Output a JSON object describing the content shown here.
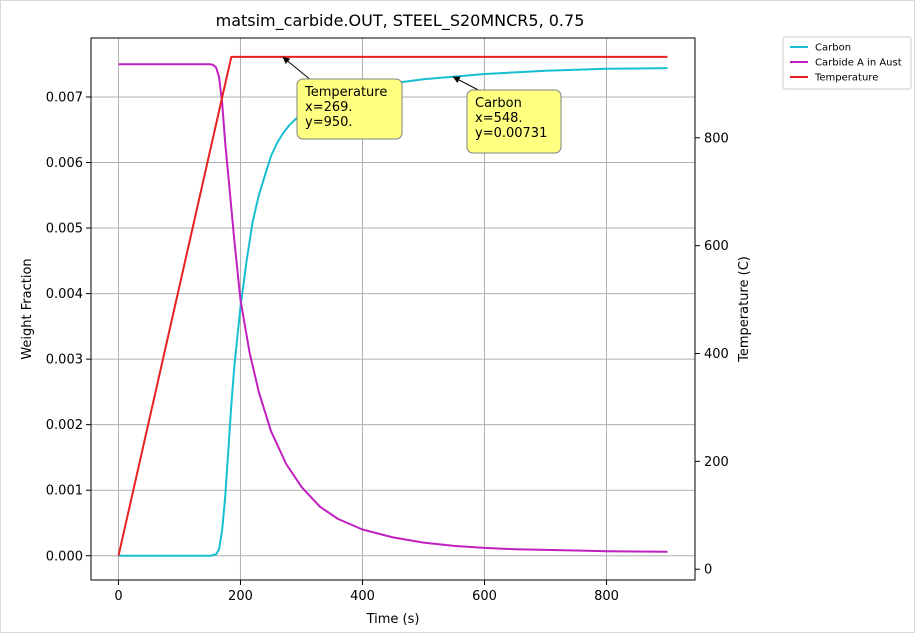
{
  "chart_data": {
    "type": "line",
    "title": "matsim_carbide.OUT, STEEL_S20MNCR5, 0.75",
    "xlabel": "Time (s)",
    "ylabel": "Weight Fraction",
    "y2label": "Temperature (C)",
    "xlim": [
      -45,
      945
    ],
    "ylim": [
      -0.00037,
      0.0079
    ],
    "y2lim": [
      -20,
      985
    ],
    "xticks": [
      0,
      200,
      400,
      600,
      800
    ],
    "xtick_labels": [
      "0",
      "200",
      "400",
      "600",
      "800"
    ],
    "yticks": [
      0,
      0.001,
      0.002,
      0.003,
      0.004,
      0.005,
      0.006,
      0.007
    ],
    "ytick_labels": [
      "0.000",
      "0.001",
      "0.002",
      "0.003",
      "0.004",
      "0.005",
      "0.006",
      "0.007"
    ],
    "y2ticks": [
      0,
      200,
      400,
      600,
      800
    ],
    "y2tick_labels": [
      "0",
      "200",
      "400",
      "600",
      "800"
    ],
    "grid": true,
    "legend_position": "outside top-right",
    "series": [
      {
        "name": "Carbon",
        "color": "#17becf",
        "axis": "left",
        "x": [
          0,
          150,
          160,
          165,
          170,
          175,
          180,
          185,
          190,
          200,
          210,
          220,
          230,
          240,
          250,
          260,
          270,
          280,
          300,
          320,
          350,
          400,
          450,
          500,
          548,
          600,
          700,
          800,
          900
        ],
        "y": [
          0,
          0,
          2e-05,
          0.0001,
          0.0004,
          0.0009,
          0.0016,
          0.0023,
          0.0029,
          0.0038,
          0.0045,
          0.0051,
          0.0055,
          0.0058,
          0.0061,
          0.0063,
          0.00645,
          0.00657,
          0.00675,
          0.00688,
          0.007,
          0.00713,
          0.00721,
          0.00727,
          0.00731,
          0.00735,
          0.0074,
          0.00743,
          0.00744
        ]
      },
      {
        "name": "Carbide A in Aust",
        "color": "#c020c0",
        "axis": "left",
        "x": [
          0,
          150,
          155,
          160,
          165,
          170,
          175,
          180,
          190,
          200,
          215,
          230,
          250,
          275,
          300,
          330,
          360,
          400,
          450,
          500,
          550,
          600,
          650,
          700,
          750,
          800,
          850,
          900
        ],
        "y": [
          0.0075,
          0.0075,
          0.00749,
          0.00745,
          0.0073,
          0.0069,
          0.0063,
          0.0058,
          0.0048,
          0.0039,
          0.0031,
          0.0025,
          0.0019,
          0.0014,
          0.00105,
          0.00075,
          0.00056,
          0.0004,
          0.00028,
          0.0002,
          0.00015,
          0.00012,
          0.0001,
          9e-05,
          8e-05,
          7e-05,
          6.5e-05,
          6e-05
        ]
      },
      {
        "name": "Temperature",
        "color": "#e82020",
        "axis": "right",
        "x": [
          0,
          185,
          900
        ],
        "y": [
          25,
          950,
          950
        ]
      }
    ],
    "annotations": [
      {
        "series": "Temperature",
        "lines": [
          "Temperature",
          "x=269.",
          "y=950."
        ],
        "x": 269,
        "y": 950
      },
      {
        "series": "Carbon",
        "lines": [
          "Carbon",
          "x=548.",
          "y=0.00731"
        ],
        "x": 548,
        "y": 0.00731
      }
    ]
  }
}
